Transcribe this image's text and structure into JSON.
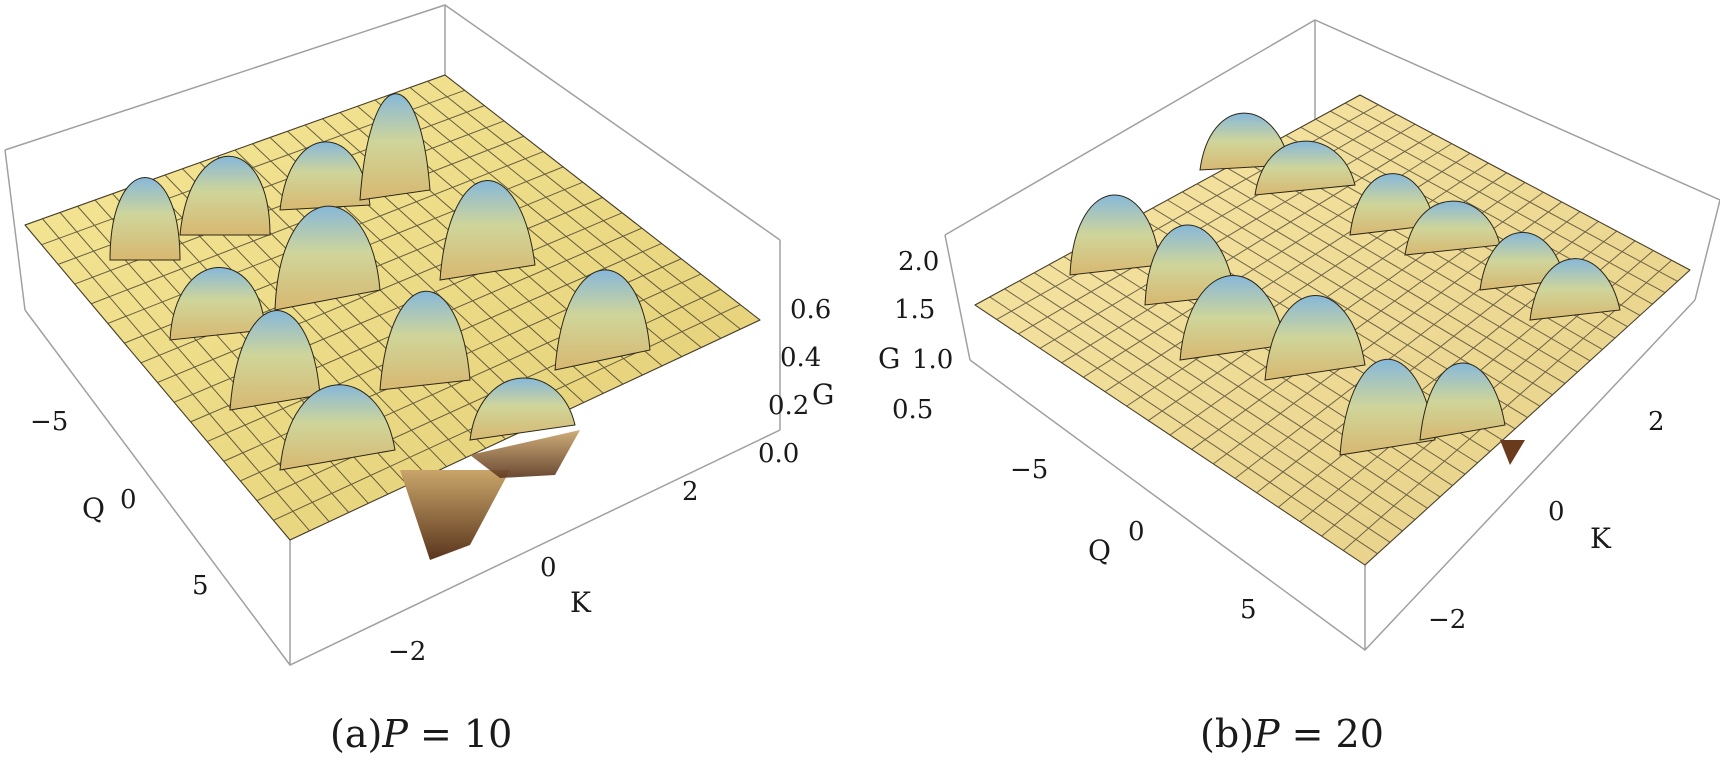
{
  "chart_data": [
    {
      "type": "surface3d",
      "caption_prefix": "(a)",
      "caption_var": "P",
      "caption_eq": " = 10",
      "xlabel": "K",
      "ylabel": "Q",
      "zlabel": "G",
      "x_ticks": [
        "−2",
        "0",
        "2"
      ],
      "y_ticks": [
        "−5",
        "0",
        "5"
      ],
      "z_ticks": [
        "0.0",
        "0.2",
        "0.4",
        "0.6"
      ],
      "xlim": [
        -4,
        4
      ],
      "ylim": [
        -9,
        9
      ],
      "zlim": [
        -0.2,
        0.7
      ],
      "grid": true
    },
    {
      "type": "surface3d",
      "caption_prefix": "(b)",
      "caption_var": "P",
      "caption_eq": " = 20",
      "xlabel": "K",
      "ylabel": "Q",
      "zlabel": "G",
      "x_ticks": [
        "−2",
        "0",
        "2"
      ],
      "y_ticks": [
        "−5",
        "0",
        "5"
      ],
      "z_ticks": [
        "0.5",
        "1.0",
        "1.5",
        "2.0"
      ],
      "xlim": [
        -4,
        4
      ],
      "ylim": [
        -9,
        9
      ],
      "zlim": [
        0,
        2.1
      ],
      "grid": true
    }
  ],
  "colors": {
    "surface_light": "#f3e08a",
    "surface_mid": "#d9c46a",
    "peak": "#7fb3d8",
    "valley": "#7a4a2a",
    "mesh": "#3a3326",
    "box": "#9a9a9a"
  }
}
